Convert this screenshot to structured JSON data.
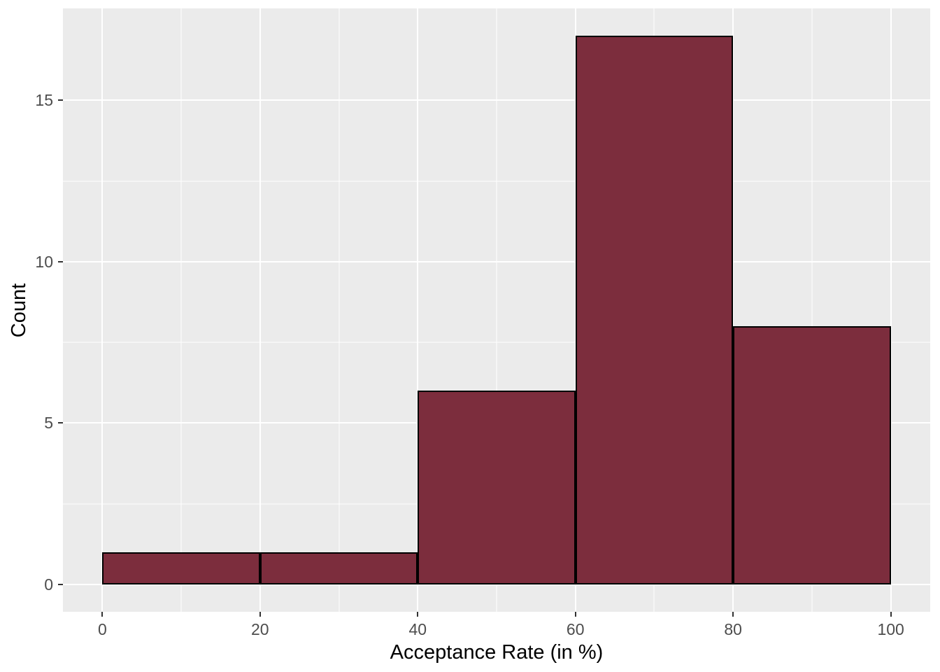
{
  "chart_data": {
    "type": "bar",
    "subtype": "histogram",
    "title": "",
    "xlabel": "Acceptance Rate (in %)",
    "ylabel": "Count",
    "categories": [
      "0-20",
      "20-40",
      "40-60",
      "60-80",
      "80-100"
    ],
    "values": [
      1,
      1,
      6,
      17,
      8
    ],
    "bins": [
      {
        "x0": 0,
        "x1": 20,
        "count": 1
      },
      {
        "x0": 20,
        "x1": 40,
        "count": 1
      },
      {
        "x0": 40,
        "x1": 60,
        "count": 6
      },
      {
        "x0": 60,
        "x1": 80,
        "count": 17
      },
      {
        "x0": 80,
        "x1": 100,
        "count": 8
      }
    ],
    "x_ticks": [
      0,
      20,
      40,
      60,
      80,
      100
    ],
    "y_ticks": [
      0,
      5,
      10,
      15
    ],
    "x_minor_gridlines": [
      10,
      30,
      50,
      70,
      90
    ],
    "y_minor_gridlines": [
      2.5,
      7.5,
      12.5
    ],
    "xlim": [
      -5,
      105
    ],
    "ylim": [
      -0.85,
      17.85
    ],
    "grid": true,
    "legend_position": "none",
    "colors": {
      "bar_fill": "#7C2D3D",
      "bar_stroke": "#000000",
      "panel_background": "#EBEBEB",
      "gridline": "#FFFFFF",
      "tick_mark": "#333333",
      "tick_label": "#4D4D4D",
      "axis_title": "#000000",
      "figure_background": "#FFFFFF"
    }
  }
}
